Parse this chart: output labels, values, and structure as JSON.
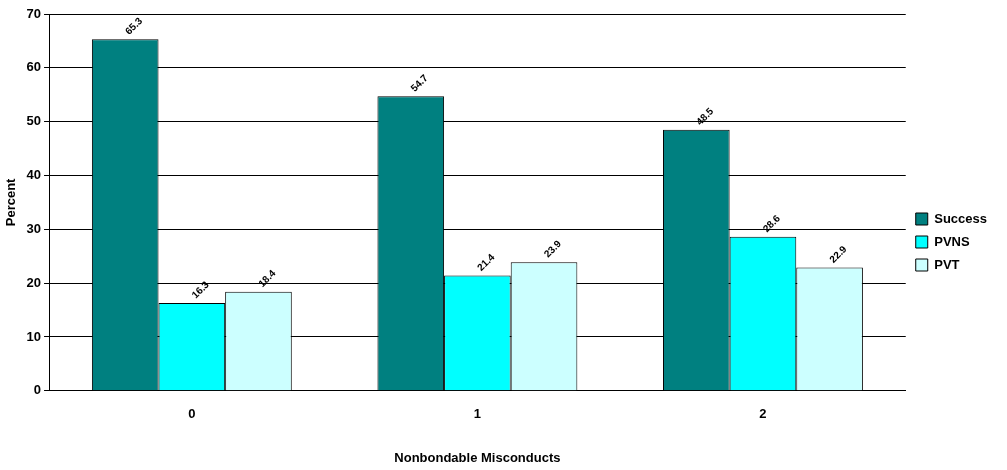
{
  "chart_data": {
    "type": "bar",
    "xlabel": "Nonbondable Misconducts",
    "ylabel": "Percent",
    "categories": [
      "0",
      "1",
      "2"
    ],
    "series": [
      {
        "name": "Success",
        "color": "#008080",
        "values": [
          65.3,
          54.7,
          48.5
        ]
      },
      {
        "name": "PVNS",
        "color": "#00ffff",
        "values": [
          16.3,
          21.4,
          28.6
        ]
      },
      {
        "name": "PVT",
        "color": "#ccffff",
        "values": [
          18.4,
          23.9,
          22.9
        ]
      }
    ],
    "ylim": [
      0,
      70
    ],
    "yticks": [
      0,
      10,
      20,
      30,
      40,
      50,
      60,
      70
    ],
    "grid": "y",
    "legend": "right",
    "data_labels": true
  }
}
